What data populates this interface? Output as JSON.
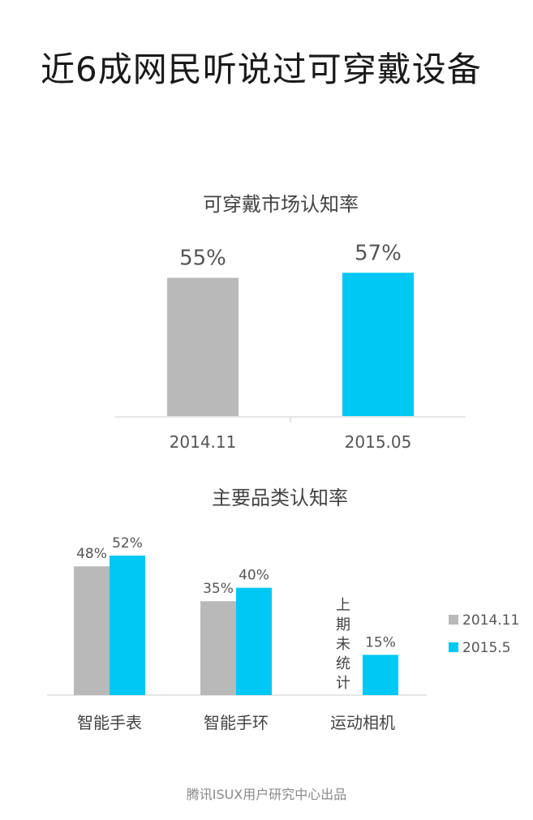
{
  "headline": "近6成网民听说过可穿戴设备",
  "footer": "腾讯ISUX用户研究中心出品",
  "colors": {
    "grey": "#b9b9b9",
    "cyan": "#00c8f4",
    "axis": "#d6d6d6",
    "text": "#555555"
  },
  "chart_data": [
    {
      "type": "bar",
      "title": "可穿戴市场认知率",
      "categories": [
        "2014.11",
        "2015.05"
      ],
      "values": [
        55,
        57
      ],
      "value_labels": [
        "55%",
        "57%"
      ],
      "ylim": [
        0,
        60
      ]
    },
    {
      "type": "bar",
      "title": "主要品类认知率",
      "categories": [
        "智能手表",
        "智能手环",
        "运动相机"
      ],
      "series": [
        {
          "name": "2014.11",
          "values": [
            48,
            35,
            null
          ],
          "labels": [
            "48%",
            "35%",
            ""
          ]
        },
        {
          "name": "2015.5",
          "values": [
            52,
            40,
            15
          ],
          "labels": [
            "52%",
            "40%",
            "15%"
          ]
        }
      ],
      "annotation": "上期未统计",
      "legend": "right",
      "ylim": [
        0,
        52
      ]
    }
  ]
}
